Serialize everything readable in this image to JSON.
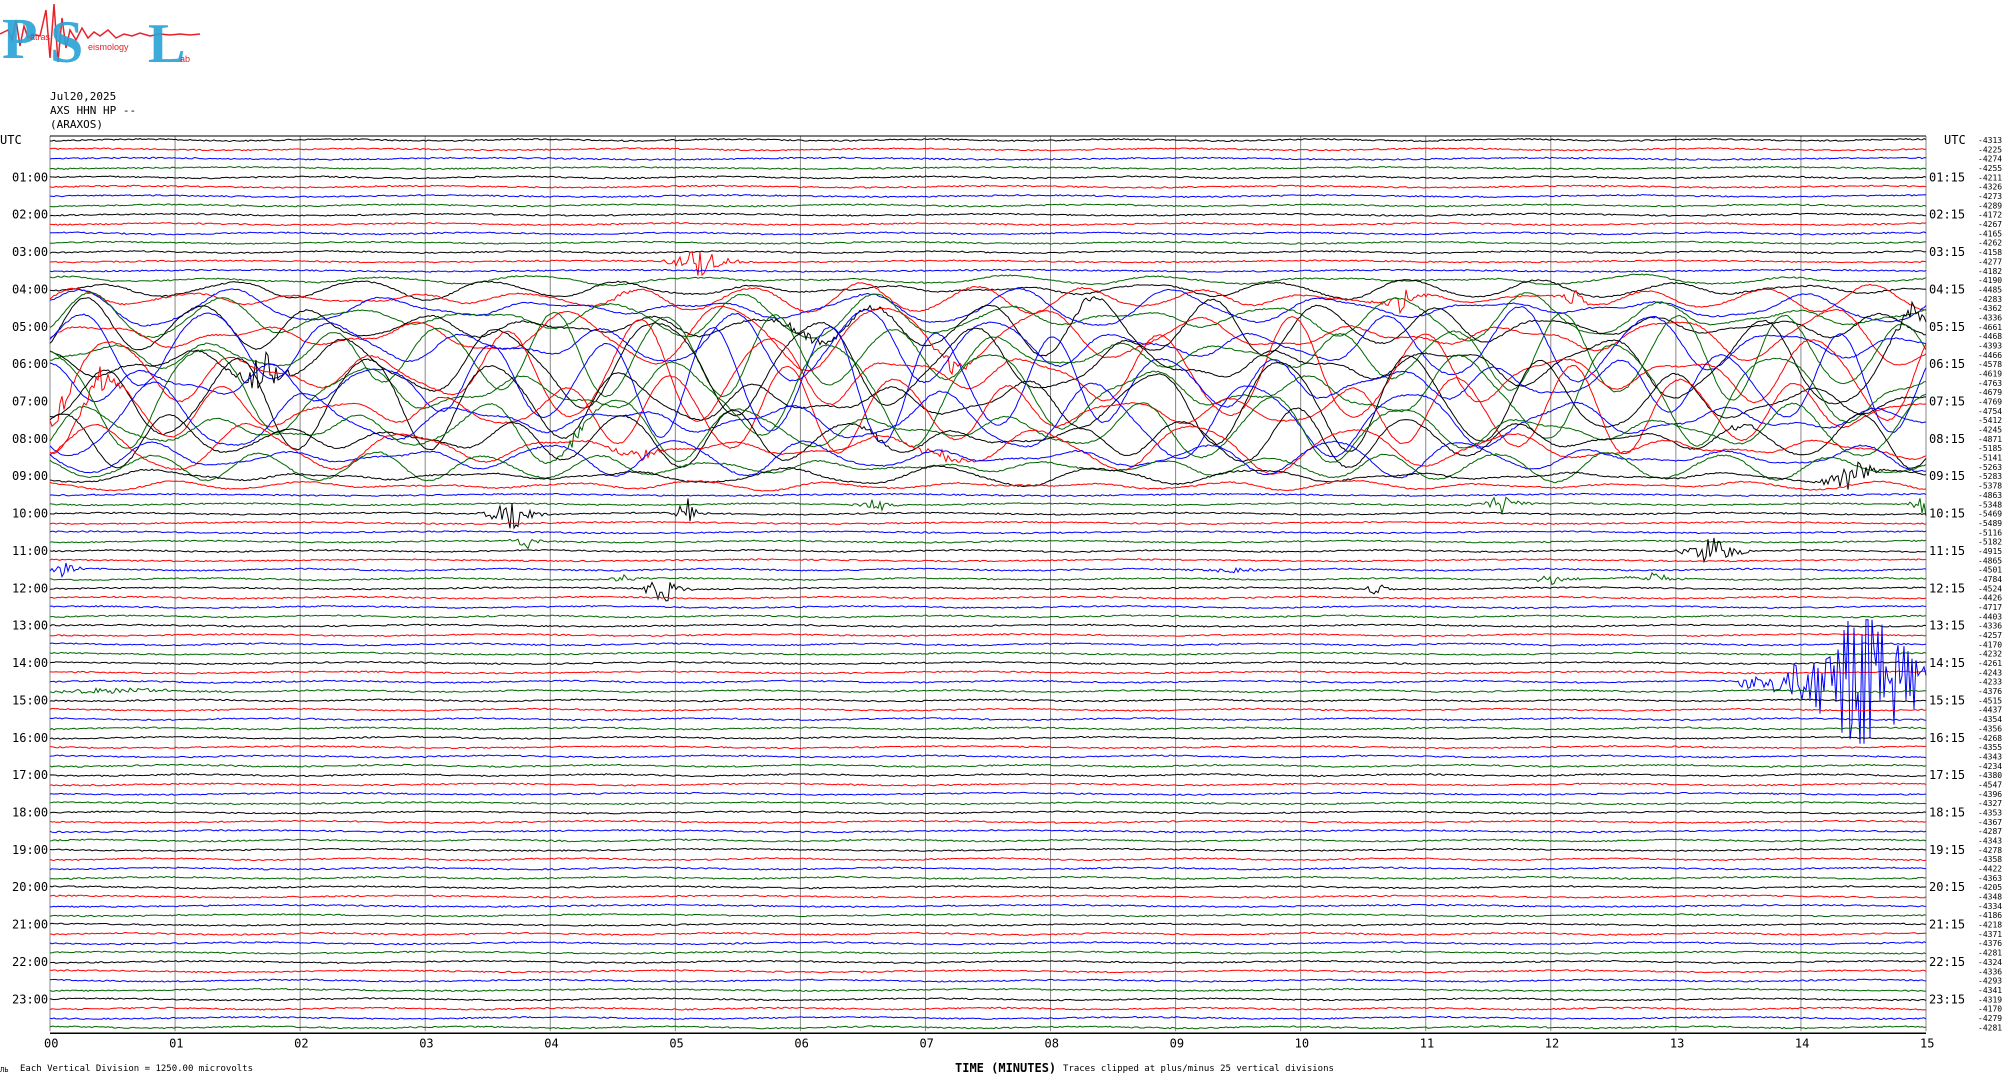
{
  "header": {
    "logo_text": "PSL",
    "logo_subtext_a": "atras",
    "logo_subtext_b": "eismology",
    "logo_subtext_c": "ab",
    "date": "Jul20,2025",
    "station": "AXS HHN HP --",
    "location": "(ARAXOS)"
  },
  "axis": {
    "left_label": "UTC",
    "right_label": "UTC",
    "x_title": "TIME (MINUTES)",
    "x_ticks": [
      "00",
      "01",
      "02",
      "03",
      "04",
      "05",
      "06",
      "07",
      "08",
      "09",
      "10",
      "11",
      "12",
      "13",
      "14",
      "15"
    ],
    "left_hours": [
      "01:00",
      "02:00",
      "03:00",
      "04:00",
      "05:00",
      "06:00",
      "07:00",
      "08:00",
      "09:00",
      "10:00",
      "11:00",
      "12:00",
      "13:00",
      "14:00",
      "15:00",
      "16:00",
      "17:00",
      "18:00",
      "19:00",
      "20:00",
      "21:00",
      "22:00",
      "23:00"
    ],
    "right_hours": [
      "01:15",
      "02:15",
      "03:15",
      "04:15",
      "05:15",
      "06:15",
      "07:15",
      "08:15",
      "09:15",
      "10:15",
      "11:15",
      "12:15",
      "13:15",
      "14:15",
      "15:15",
      "16:15",
      "17:15",
      "18:15",
      "19:15",
      "20:15",
      "21:15",
      "22:15",
      "23:15"
    ]
  },
  "footer": {
    "scale_note": "Each Vertical Division = 1250.00 microvolts",
    "clip_note": "Traces clipped at plus/minus 25 vertical divisions",
    "corner_mark": "ЛЬ"
  },
  "colors": {
    "trace_cycle": [
      "#000000",
      "#ff0000",
      "#0000ff",
      "#006600"
    ],
    "grid": "#888888",
    "logo_blue": "#29a3d6",
    "logo_red": "#e8202a"
  },
  "chart_data": {
    "type": "line",
    "title": "",
    "xlabel": "TIME (MINUTES)",
    "ylabel": "UTC",
    "xlim": [
      0,
      15
    ],
    "traces_per_hour": 4,
    "minutes_per_trace": 15,
    "trace_offsets": [
      "-4313",
      "-4225",
      "-4274",
      "-4255",
      "-4211",
      "-4326",
      "-4273",
      "-4289",
      "-4172",
      "-4267",
      "-4165",
      "-4262",
      "-4158",
      "-4277",
      "-4182",
      "-4190",
      "-4485",
      "-4283",
      "-4362",
      "-4336",
      "-4661",
      "-4468",
      "-4393",
      "-4466",
      "-4578",
      "-4619",
      "-4763",
      "-4679",
      "-4769",
      "-4754",
      "-5412",
      "-4245",
      "-4871",
      "-5185",
      "-5141",
      "-5263",
      "-5283",
      "-5378",
      "-4863",
      "-5348",
      "-5469",
      "-5489",
      "-5116",
      "-5182",
      "-4915",
      "-4865",
      "-4501",
      "-4784",
      "-4524",
      "-4426",
      "-4717",
      "-4403",
      "-4336",
      "-4257",
      "-4170",
      "-4232",
      "-4261",
      "-4243",
      "-4233",
      "-4376",
      "-4515",
      "-4437",
      "-4354",
      "-4356",
      "-4268",
      "-4355",
      "-4343",
      "-4234",
      "-4380",
      "-4547",
      "-4396",
      "-4327",
      "-4353",
      "-4367",
      "-4287",
      "-4343",
      "-4278",
      "-4358",
      "-4422",
      "-4363",
      "-4205",
      "-4348",
      "-4334",
      "-4186",
      "-4218",
      "-4371",
      "-4376",
      "-4281",
      "-4324",
      "-4336",
      "-4293",
      "-4341",
      "-4319",
      "-4170",
      "-4279",
      "-4281"
    ],
    "events": [
      {
        "row": 13,
        "minute": 5.2,
        "amp": 18,
        "dur": 0.35
      },
      {
        "row": 17,
        "minute": 4.6,
        "amp": 4,
        "dur": 0.3
      },
      {
        "row": 17,
        "minute": 10.8,
        "amp": 14,
        "dur": 0.25
      },
      {
        "row": 17,
        "minute": 12.2,
        "amp": 10,
        "dur": 0.2
      },
      {
        "row": 20,
        "minute": 6.0,
        "amp": 6,
        "dur": 0.6
      },
      {
        "row": 20,
        "minute": 6.6,
        "amp": 6,
        "dur": 0.3
      },
      {
        "row": 20,
        "minute": 8.3,
        "amp": 8,
        "dur": 0.15
      },
      {
        "row": 21,
        "minute": 7.2,
        "amp": 12,
        "dur": 0.25
      },
      {
        "row": 25,
        "minute": 0.1,
        "amp": 14,
        "dur": 0.2
      },
      {
        "row": 24,
        "minute": 1.7,
        "amp": 28,
        "dur": 0.3
      },
      {
        "row": 24,
        "minute": 14.9,
        "amp": 18,
        "dur": 0.2
      },
      {
        "row": 29,
        "minute": 0.4,
        "amp": 18,
        "dur": 0.25
      },
      {
        "row": 31,
        "minute": 4.2,
        "amp": 10,
        "dur": 0.2
      },
      {
        "row": 32,
        "minute": 6.6,
        "amp": 6,
        "dur": 0.2
      },
      {
        "row": 32,
        "minute": 13.5,
        "amp": 8,
        "dur": 0.2
      },
      {
        "row": 33,
        "minute": 4.7,
        "amp": 8,
        "dur": 0.4
      },
      {
        "row": 33,
        "minute": 7.1,
        "amp": 8,
        "dur": 0.4
      },
      {
        "row": 36,
        "minute": 14.4,
        "amp": 22,
        "dur": 0.3
      },
      {
        "row": 40,
        "minute": 3.7,
        "amp": 24,
        "dur": 0.3
      },
      {
        "row": 40,
        "minute": 5.1,
        "amp": 22,
        "dur": 0.15
      },
      {
        "row": 39,
        "minute": 6.6,
        "amp": 10,
        "dur": 0.2
      },
      {
        "row": 39,
        "minute": 11.6,
        "amp": 12,
        "dur": 0.3
      },
      {
        "row": 39,
        "minute": 15.0,
        "amp": 14,
        "dur": 0.2
      },
      {
        "row": 43,
        "minute": 3.8,
        "amp": 12,
        "dur": 0.15
      },
      {
        "row": 46,
        "minute": 0.1,
        "amp": 10,
        "dur": 0.2
      },
      {
        "row": 44,
        "minute": 13.3,
        "amp": 22,
        "dur": 0.3
      },
      {
        "row": 48,
        "minute": 4.9,
        "amp": 18,
        "dur": 0.25
      },
      {
        "row": 47,
        "minute": 4.6,
        "amp": 6,
        "dur": 0.2
      },
      {
        "row": 48,
        "minute": 10.6,
        "amp": 10,
        "dur": 0.15
      },
      {
        "row": 47,
        "minute": 12.0,
        "amp": 6,
        "dur": 0.3
      },
      {
        "row": 47,
        "minute": 12.8,
        "amp": 8,
        "dur": 0.3
      },
      {
        "row": 46,
        "minute": 9.5,
        "amp": 4,
        "dur": 0.4
      },
      {
        "row": 58,
        "minute": 14.5,
        "amp": 90,
        "dur": 1.0
      },
      {
        "row": 59,
        "minute": 0.5,
        "amp": 4,
        "dur": 1.0
      }
    ],
    "swell": {
      "rows": [
        14,
        38
      ],
      "minutes": [
        0,
        15
      ]
    }
  }
}
